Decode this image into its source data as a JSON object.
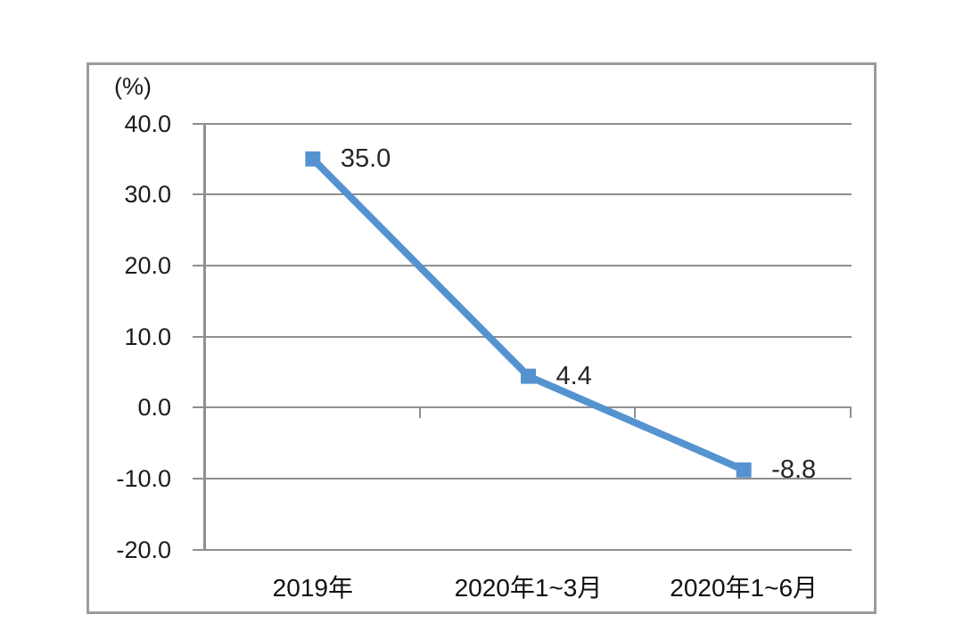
{
  "chart": {
    "background": "#ffffff",
    "frame_color": "#9b9b9b",
    "grid_color": "#8f8f8f",
    "axis_color": "#8f8f8f",
    "text_color": "#1c1c1c",
    "accent_color": "#5593d0"
  },
  "chart_data": {
    "type": "line",
    "title": "",
    "ylabel": "(%)",
    "xlabel": "",
    "categories": [
      "2019年",
      "2020年1~3月",
      "2020年1~6月"
    ],
    "values": [
      35.0,
      4.4,
      -8.8
    ],
    "data_labels": [
      "35.0",
      "4.4",
      "-8.8"
    ],
    "yticks": [
      40,
      30,
      20,
      10,
      0,
      -10,
      -20
    ],
    "ytick_labels": [
      "40.0",
      "30.0",
      "20.0",
      "10.0",
      "0.0",
      "-10.0",
      "-20.0"
    ],
    "ylim": [
      -20,
      40
    ],
    "grid": true,
    "legend_position": "none",
    "marker": "square",
    "line_color": "#5593d0"
  }
}
